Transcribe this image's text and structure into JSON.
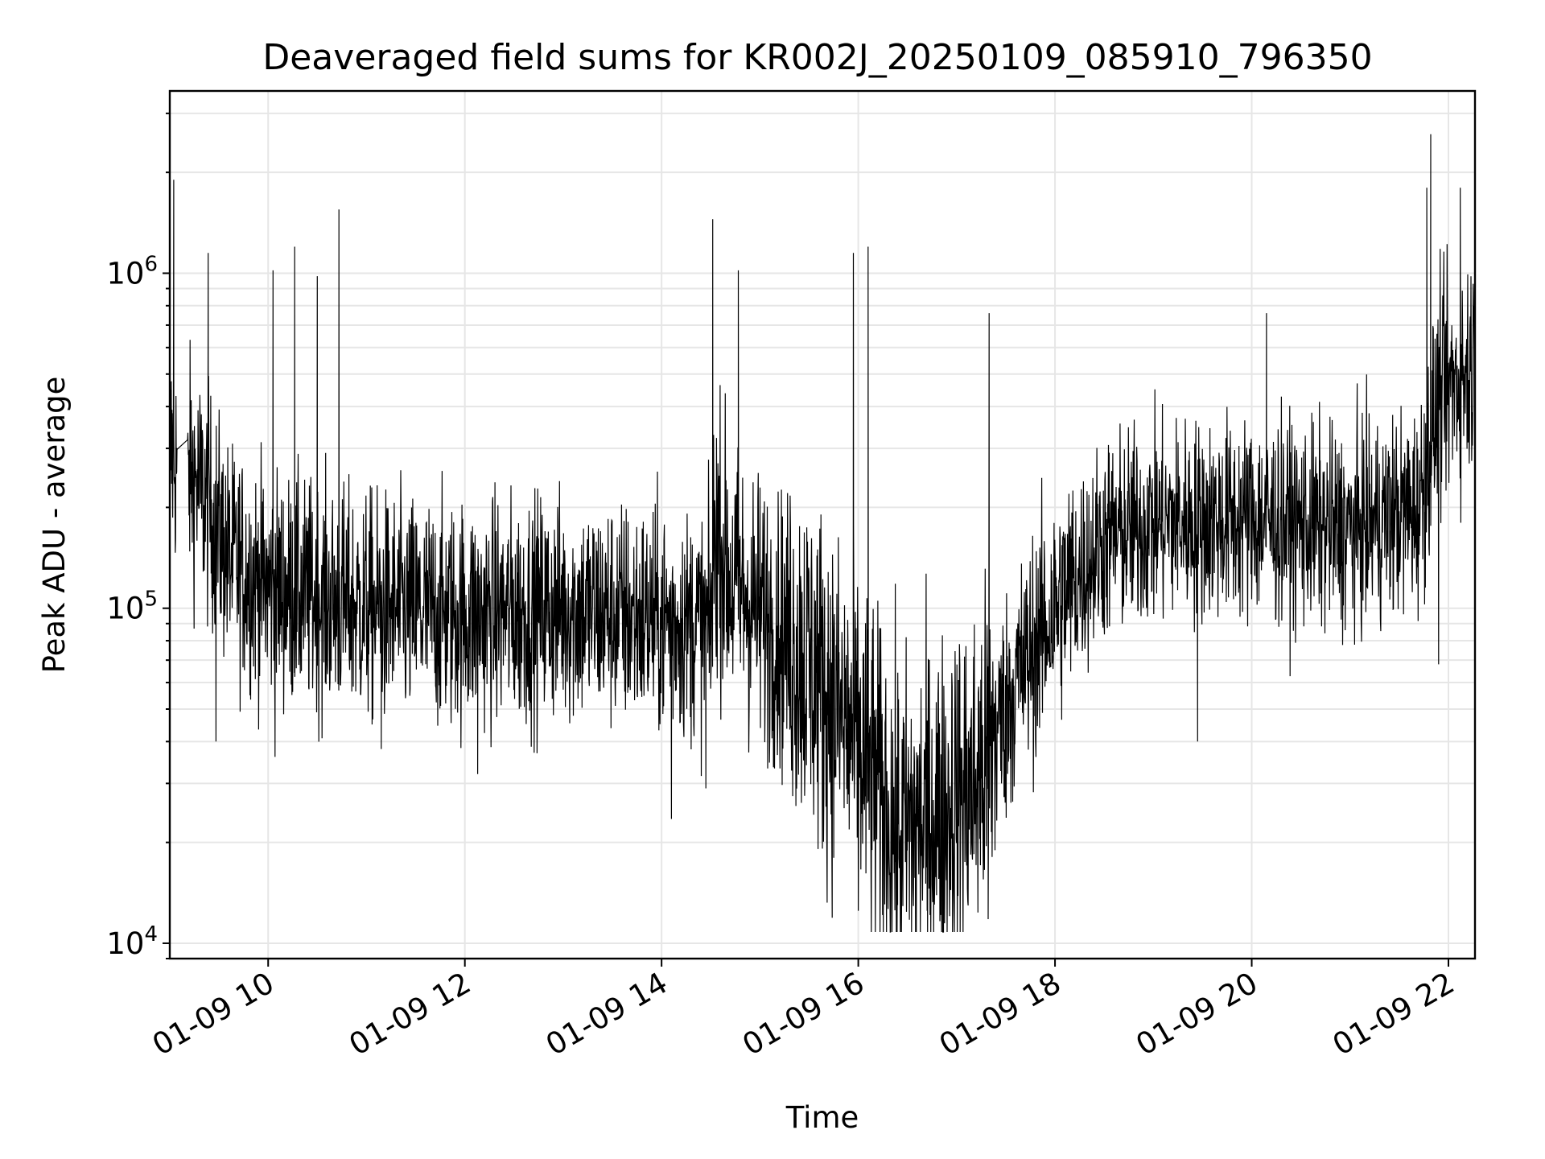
{
  "chart_data": {
    "type": "line",
    "title": "Deaveraged field sums for KR002J_20250109_085910_796350",
    "xlabel": "Time",
    "ylabel": "Peak ADU - average",
    "x_ticks": [
      "01-09 10",
      "01-09 12",
      "01-09 14",
      "01-09 16",
      "01-09 18",
      "01-09 20",
      "01-09 22"
    ],
    "x_tick_hours": [
      10,
      12,
      14,
      16,
      18,
      20,
      22
    ],
    "xlim_hours": [
      9.0,
      22.27
    ],
    "y_scale": "log",
    "ylim": [
      9000,
      3500000
    ],
    "y_ticks": [
      {
        "value": 10000,
        "base": "10",
        "exp": "4"
      },
      {
        "value": 100000,
        "base": "10",
        "exp": "5"
      },
      {
        "value": 1000000,
        "base": "10",
        "exp": "6"
      }
    ],
    "grid": true,
    "line_color": "#000000",
    "series": [
      {
        "profile": [
          {
            "h": 9.0,
            "v": 300000
          },
          {
            "h": 9.05,
            "v": 280000
          },
          {
            "h": 9.18,
            "v": 220000
          },
          {
            "h": 9.2,
            "v": 260000
          },
          {
            "h": 9.4,
            "v": 200000
          },
          {
            "h": 9.6,
            "v": 140000
          },
          {
            "h": 10.0,
            "v": 115000
          },
          {
            "h": 11.0,
            "v": 100000
          },
          {
            "h": 12.0,
            "v": 95000
          },
          {
            "h": 13.0,
            "v": 100000
          },
          {
            "h": 14.0,
            "v": 92000
          },
          {
            "h": 14.5,
            "v": 88000
          },
          {
            "h": 14.55,
            "v": 180000
          },
          {
            "h": 14.7,
            "v": 120000
          },
          {
            "h": 15.5,
            "v": 70000
          },
          {
            "h": 16.0,
            "v": 38000
          },
          {
            "h": 16.4,
            "v": 21000
          },
          {
            "h": 16.8,
            "v": 24000
          },
          {
            "h": 17.2,
            "v": 30000
          },
          {
            "h": 17.6,
            "v": 60000
          },
          {
            "h": 18.0,
            "v": 100000
          },
          {
            "h": 18.5,
            "v": 160000
          },
          {
            "h": 19.0,
            "v": 180000
          },
          {
            "h": 20.0,
            "v": 185000
          },
          {
            "h": 21.0,
            "v": 170000
          },
          {
            "h": 21.7,
            "v": 200000
          },
          {
            "h": 21.9,
            "v": 420000
          },
          {
            "h": 22.27,
            "v": 550000
          }
        ],
        "spikes": [
          {
            "h": 9.04,
            "v": 1900000
          },
          {
            "h": 9.39,
            "v": 1150000
          },
          {
            "h": 10.05,
            "v": 1020000
          },
          {
            "h": 10.27,
            "v": 1200000
          },
          {
            "h": 10.5,
            "v": 980000
          },
          {
            "h": 10.72,
            "v": 1550000
          },
          {
            "h": 14.52,
            "v": 1450000
          },
          {
            "h": 14.78,
            "v": 1020000
          },
          {
            "h": 15.95,
            "v": 1150000
          },
          {
            "h": 16.1,
            "v": 1200000
          },
          {
            "h": 17.33,
            "v": 760000
          },
          {
            "h": 20.15,
            "v": 760000
          },
          {
            "h": 21.78,
            "v": 1800000
          },
          {
            "h": 21.82,
            "v": 2600000
          },
          {
            "h": 22.12,
            "v": 1800000
          }
        ],
        "dips": [
          {
            "h": 9.47,
            "v": 40000
          },
          {
            "h": 10.07,
            "v": 36000
          },
          {
            "h": 11.15,
            "v": 38000
          },
          {
            "h": 12.13,
            "v": 32000
          },
          {
            "h": 14.1,
            "v": 23500
          },
          {
            "h": 14.45,
            "v": 29000
          },
          {
            "h": 15.75,
            "v": 18000
          },
          {
            "h": 16.0,
            "v": 12500
          },
          {
            "h": 16.4,
            "v": 13000
          },
          {
            "h": 16.7,
            "v": 12500
          },
          {
            "h": 17.32,
            "v": 11800
          },
          {
            "h": 19.45,
            "v": 40000
          },
          {
            "h": 21.9,
            "v": 68000
          }
        ]
      }
    ]
  }
}
